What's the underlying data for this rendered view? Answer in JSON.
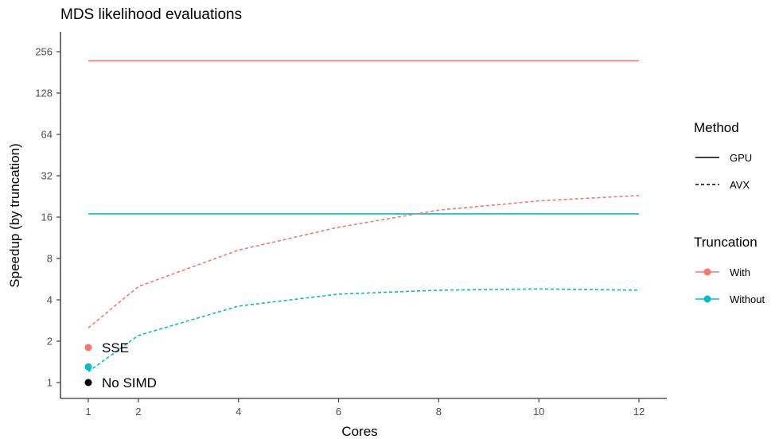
{
  "chart_data": {
    "type": "line",
    "title": "MDS likelihood evaluations",
    "xlabel": "Cores",
    "ylabel": "Speedup (by truncation)",
    "xlim": [
      1,
      12
    ],
    "y_scale": "log2",
    "ylim": [
      1,
      256
    ],
    "x_ticks": [
      1,
      2,
      4,
      6,
      8,
      10,
      12
    ],
    "y_ticks": [
      1,
      2,
      4,
      8,
      16,
      32,
      64,
      128,
      256
    ],
    "grid": false,
    "colors": {
      "With": "#f8766d",
      "Without": "#00bfc4",
      "none": "#000000"
    },
    "legend": {
      "placement": "right",
      "method_title": "Method",
      "method_items": [
        {
          "label": "GPU",
          "linetype": "solid"
        },
        {
          "label": "AVX",
          "linetype": "dashed"
        }
      ],
      "truncation_title": "Truncation",
      "truncation_items": [
        {
          "label": "With",
          "color": "#f8766d"
        },
        {
          "label": "Without",
          "color": "#00bfc4"
        }
      ]
    },
    "series": [
      {
        "method": "GPU",
        "truncation": "With",
        "linetype": "solid",
        "x": [
          1,
          12
        ],
        "y": [
          220,
          220
        ]
      },
      {
        "method": "GPU",
        "truncation": "Without",
        "linetype": "solid",
        "x": [
          1,
          12
        ],
        "y": [
          16.9,
          16.9
        ]
      },
      {
        "method": "AVX",
        "truncation": "With",
        "linetype": "dashed",
        "x": [
          1,
          2,
          4,
          6,
          8,
          10,
          12
        ],
        "y": [
          2.5,
          5.0,
          9.2,
          13.5,
          18.0,
          21.0,
          23.0
        ]
      },
      {
        "method": "AVX",
        "truncation": "Without",
        "linetype": "dashed",
        "x": [
          1,
          2,
          4,
          6,
          8,
          10,
          12
        ],
        "y": [
          1.2,
          2.2,
          3.6,
          4.4,
          4.7,
          4.8,
          4.7
        ]
      }
    ],
    "points": [
      {
        "x": 1,
        "y": 1.8,
        "truncation": "With",
        "label": "SSE"
      },
      {
        "x": 1,
        "y": 1.3,
        "truncation": "Without",
        "label": ""
      },
      {
        "x": 1,
        "y": 1.0,
        "truncation": "none",
        "label": "No SIMD"
      }
    ]
  }
}
